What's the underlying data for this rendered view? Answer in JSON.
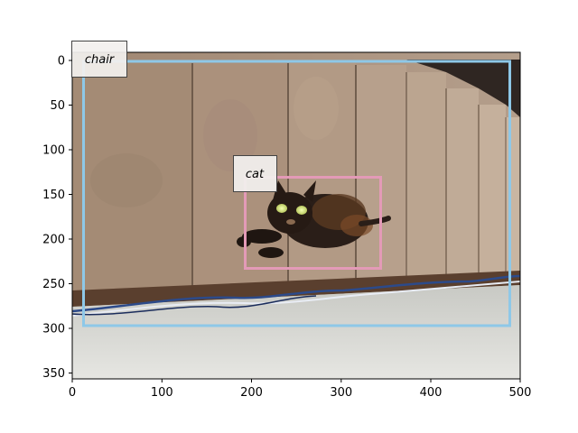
{
  "figure": {
    "x_ticks": [
      "0",
      "100",
      "200",
      "300",
      "400",
      "500"
    ],
    "y_ticks": [
      "0",
      "50",
      "100",
      "150",
      "200",
      "250",
      "300",
      "350"
    ]
  },
  "detections": [
    {
      "label": "chair",
      "color": "#8ec8e8"
    },
    {
      "label": "cat",
      "color": "#e39ab7"
    }
  ]
}
